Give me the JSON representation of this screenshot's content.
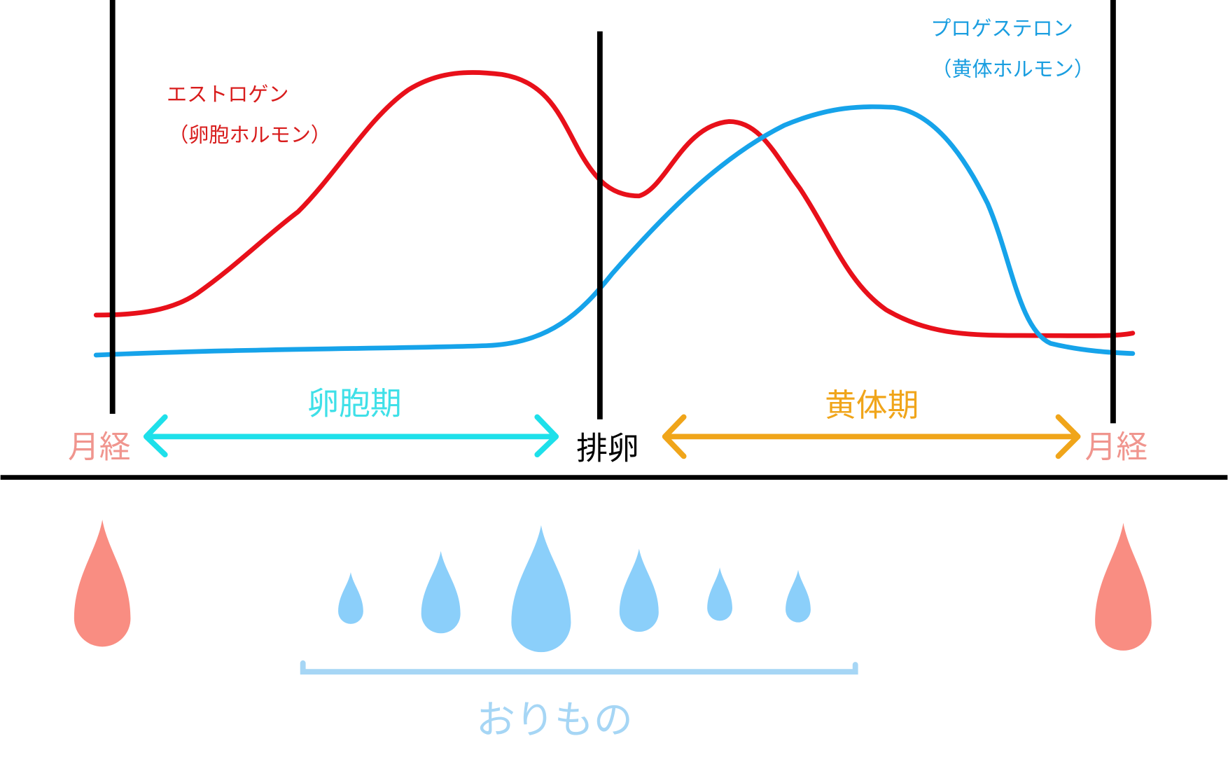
{
  "hormones": {
    "estrogen": {
      "name": "エストロゲン",
      "subtitle": "（卵胞ホルモン）"
    },
    "progesterone": {
      "name": "プロゲステロン",
      "subtitle": "（黄体ホルモン）"
    }
  },
  "phases": {
    "menstruation_start": "月経",
    "follicular": "卵胞期",
    "ovulation": "排卵",
    "luteal": "黄体期",
    "menstruation_end": "月経"
  },
  "discharge": {
    "label": "おりもの"
  }
}
